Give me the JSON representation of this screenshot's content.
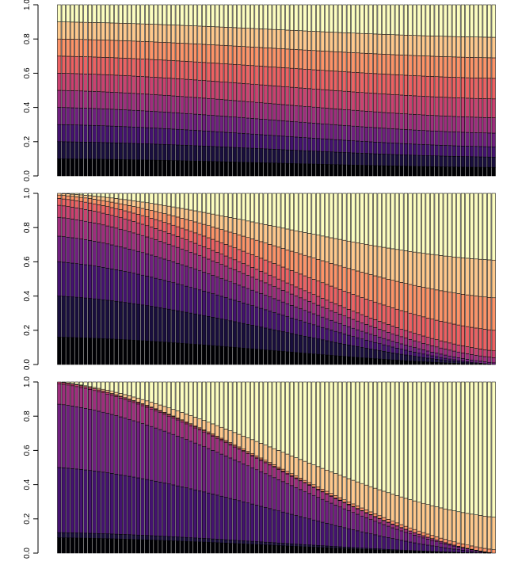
{
  "chart_data": [
    {
      "type": "bar",
      "stacked": true,
      "bar_count": 100,
      "band_count": 10,
      "x_tick_labels": false,
      "ylim": [
        0,
        1
      ],
      "yticks": [
        "0.0",
        "0.2",
        "0.4",
        "0.6",
        "0.8",
        "1.0"
      ],
      "band_boundaries_at_start": [
        0.1,
        0.2,
        0.3,
        0.4,
        0.5,
        0.6,
        0.7,
        0.8,
        0.9
      ],
      "band_boundaries_at_end": [
        0.05,
        0.11,
        0.17,
        0.25,
        0.34,
        0.45,
        0.57,
        0.69,
        0.81
      ],
      "title": "",
      "xlabel": "",
      "ylabel": ""
    },
    {
      "type": "bar",
      "stacked": true,
      "bar_count": 100,
      "band_count": 10,
      "x_tick_labels": false,
      "ylim": [
        0,
        1
      ],
      "yticks": [
        "0.0",
        "0.2",
        "0.4",
        "0.6",
        "0.8",
        "1.0"
      ],
      "band_boundaries_at_start": [
        0.16,
        0.4,
        0.6,
        0.75,
        0.86,
        0.93,
        0.97,
        0.99,
        1.0
      ],
      "band_boundaries_at_end": [
        0.0,
        0.0,
        0.0,
        0.01,
        0.04,
        0.08,
        0.2,
        0.39,
        0.61
      ],
      "title": "",
      "xlabel": "",
      "ylabel": ""
    },
    {
      "type": "bar",
      "stacked": true,
      "bar_count": 100,
      "band_count": 10,
      "x_tick_labels": false,
      "ylim": [
        0,
        1
      ],
      "yticks": [
        "0.0",
        "0.2",
        "0.4",
        "0.6",
        "0.8",
        "1.0"
      ],
      "band_boundaries_at_start": [
        0.09,
        0.12,
        0.5,
        0.87,
        0.99,
        1.0,
        1.0,
        1.0,
        1.0
      ],
      "band_boundaries_at_end": [
        0.0,
        0.0,
        0.0,
        0.0,
        0.0,
        0.0,
        0.0,
        0.02,
        0.21
      ],
      "title": "",
      "xlabel": "",
      "ylabel": ""
    }
  ],
  "palette": [
    "#000004",
    "#1c1044",
    "#4f127b",
    "#812581",
    "#b5367a",
    "#e55064",
    "#fb8761",
    "#fec287",
    "#fcfdbf"
  ],
  "palette_name": "magma",
  "colors": {
    "background": "#ffffff",
    "ink": "#000000"
  }
}
